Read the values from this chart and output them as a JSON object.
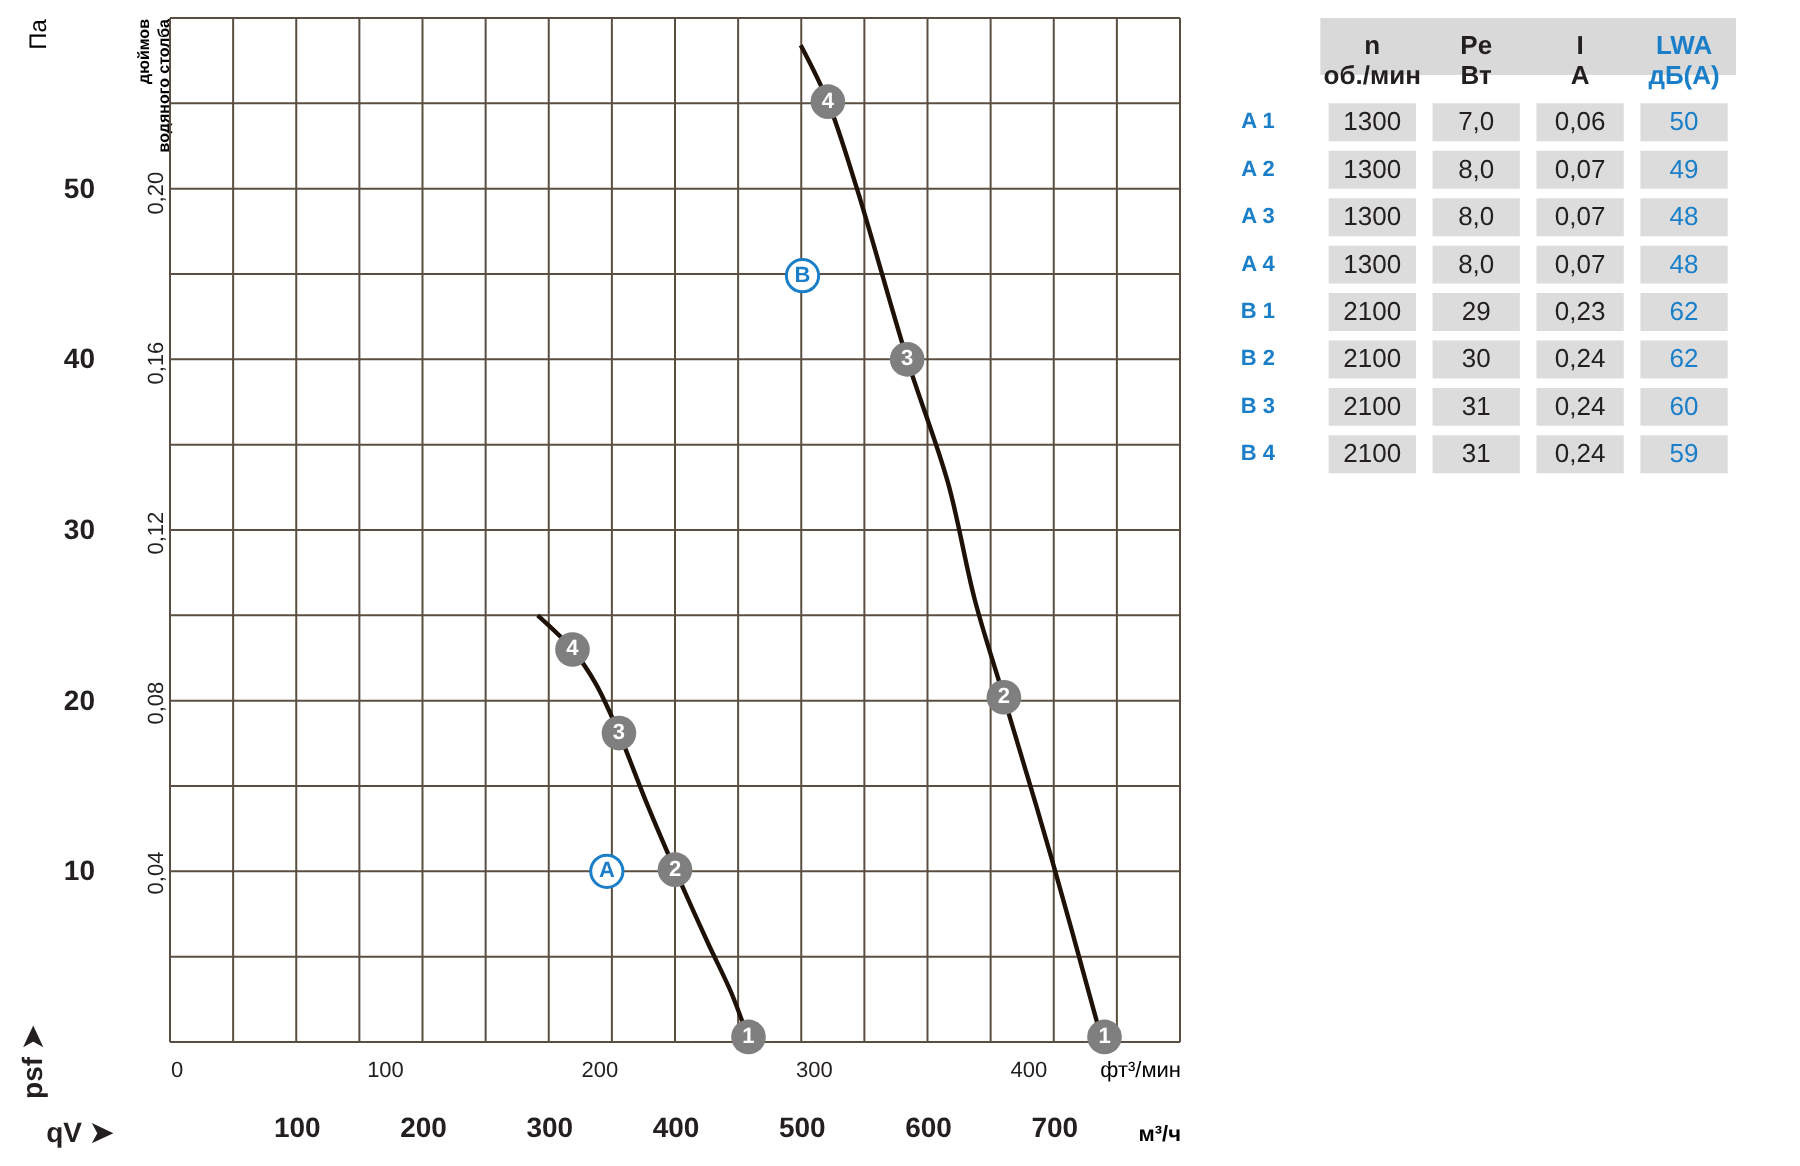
{
  "chart_data": [
    {
      "type": "line",
      "xlabel": "м³/ч",
      "x2label": "фт³/мин",
      "ylabel": "Па",
      "y2label": "дюймов\nводяного столба",
      "xlim": [
        0,
        800
      ],
      "xticks": [
        {
          "value": 0,
          "label": null
        },
        {
          "value": 50,
          "label": null
        },
        100,
        {
          "value": 150,
          "label": null
        },
        200,
        {
          "value": 250,
          "label": null
        },
        300,
        {
          "value": 350,
          "label": null
        },
        400,
        {
          "value": 450,
          "label": null
        },
        500,
        {
          "value": 550,
          "label": null
        },
        600,
        {
          "value": 650,
          "label": null
        },
        700,
        {
          "value": 750,
          "label": null
        },
        {
          "value": 800,
          "label": null
        }
      ],
      "x2lim": [
        0,
        470.9
      ],
      "x2ticks": [
        0,
        100,
        200,
        300,
        400
      ],
      "ylim": [
        0,
        60
      ],
      "yticks": [
        {
          "value": 0,
          "label": null
        },
        {
          "value": 5,
          "label": null
        },
        10,
        {
          "value": 15,
          "label": null
        },
        20,
        {
          "value": 25,
          "label": null
        },
        30,
        {
          "value": 35,
          "label": null
        },
        40,
        {
          "value": 45,
          "label": null
        },
        50,
        {
          "value": 55,
          "label": null
        },
        {
          "value": 60,
          "label": null
        }
      ],
      "y2lim": [
        0,
        0.241
      ],
      "y2ticks": [
        {
          "value": 0.04,
          "label": "0,04"
        },
        {
          "value": 0.08,
          "label": "0,08"
        },
        {
          "value": 0.12,
          "label": "0,12"
        },
        {
          "value": 0.16,
          "label": "0,16"
        },
        {
          "value": 0.2,
          "label": "0,20"
        }
      ],
      "grid": true,
      "line_style": "solid",
      "series": [
        {
          "type": "line",
          "color": "#1e1208",
          "x": [
            291.2,
            318.8,
            337.2,
            355.6,
            377.0,
            400.0,
            426.1,
            444.5,
            455.2
          ],
          "values": [
            25.0,
            23.0,
            21.0,
            18.1,
            14.1,
            10.1,
            5.8,
            2.9,
            0.8
          ]
        },
        {
          "type": "line",
          "color": "#1e1208",
          "x": [
            499.6,
            521.1,
            544.1,
            583.9,
            616.1,
            637.5,
            660.5,
            698.9,
            735.6
          ],
          "values": [
            58.4,
            55.1,
            50.0,
            40.0,
            32.8,
            25.9,
            20.2,
            10.6,
            0.8
          ]
        },
        {
          "type": "scatter",
          "marker": "circle",
          "color": "#7f7f7f",
          "x": [
            458.2,
            400.0,
            355.6,
            318.8
          ],
          "values": [
            0.3,
            10.1,
            18.1,
            23.0
          ]
        },
        {
          "type": "scatter",
          "marker": "circle",
          "color": "#7f7f7f",
          "x": [
            740.2,
            660.5,
            583.9,
            521.1
          ],
          "values": [
            0.3,
            20.2,
            40.0,
            55.1
          ]
        }
      ],
      "annotations": [
        {
          "text": "A",
          "x": 346,
          "y": 10.0
        },
        {
          "text": "B",
          "x": 501,
          "y": 44.9
        },
        {
          "text": "1",
          "x": 458.2,
          "y": 0.3
        },
        {
          "text": "2",
          "x": 400.0,
          "y": 10.1
        },
        {
          "text": "3",
          "x": 355.6,
          "y": 18.1
        },
        {
          "text": "4",
          "x": 318.8,
          "y": 23.0
        },
        {
          "text": "1",
          "x": 740.2,
          "y": 0.3
        },
        {
          "text": "2",
          "x": 660.5,
          "y": 20.2
        },
        {
          "text": "3",
          "x": 583.9,
          "y": 40.0
        },
        {
          "text": "4",
          "x": 521.1,
          "y": 55.1
        },
        "qV ➤",
        "psf ➤"
      ]
    },
    {
      "type": "other",
      "categories": [
        "n\nоб./мин",
        "Pe\nВт",
        "I\nA",
        "LWA\nдБ(A)"
      ],
      "y_categories": [
        "A 1",
        "A 2",
        "A 3",
        "A 4",
        "B 1",
        "B 2",
        "B 3",
        "B 4"
      ],
      "cell_labels": [
        [
          "1300",
          "7,0",
          "0,06",
          "50"
        ],
        [
          "1300",
          "8,0",
          "0,07",
          "49"
        ],
        [
          "1300",
          "8,0",
          "0,07",
          "48"
        ],
        [
          "1300",
          "8,0",
          "0,07",
          "48"
        ],
        [
          "2100",
          "29",
          "0,23",
          "62"
        ],
        [
          "2100",
          "30",
          "0,24",
          "62"
        ],
        [
          "2100",
          "31",
          "0,24",
          "60"
        ],
        [
          "2100",
          "31",
          "0,24",
          "59"
        ]
      ]
    }
  ]
}
